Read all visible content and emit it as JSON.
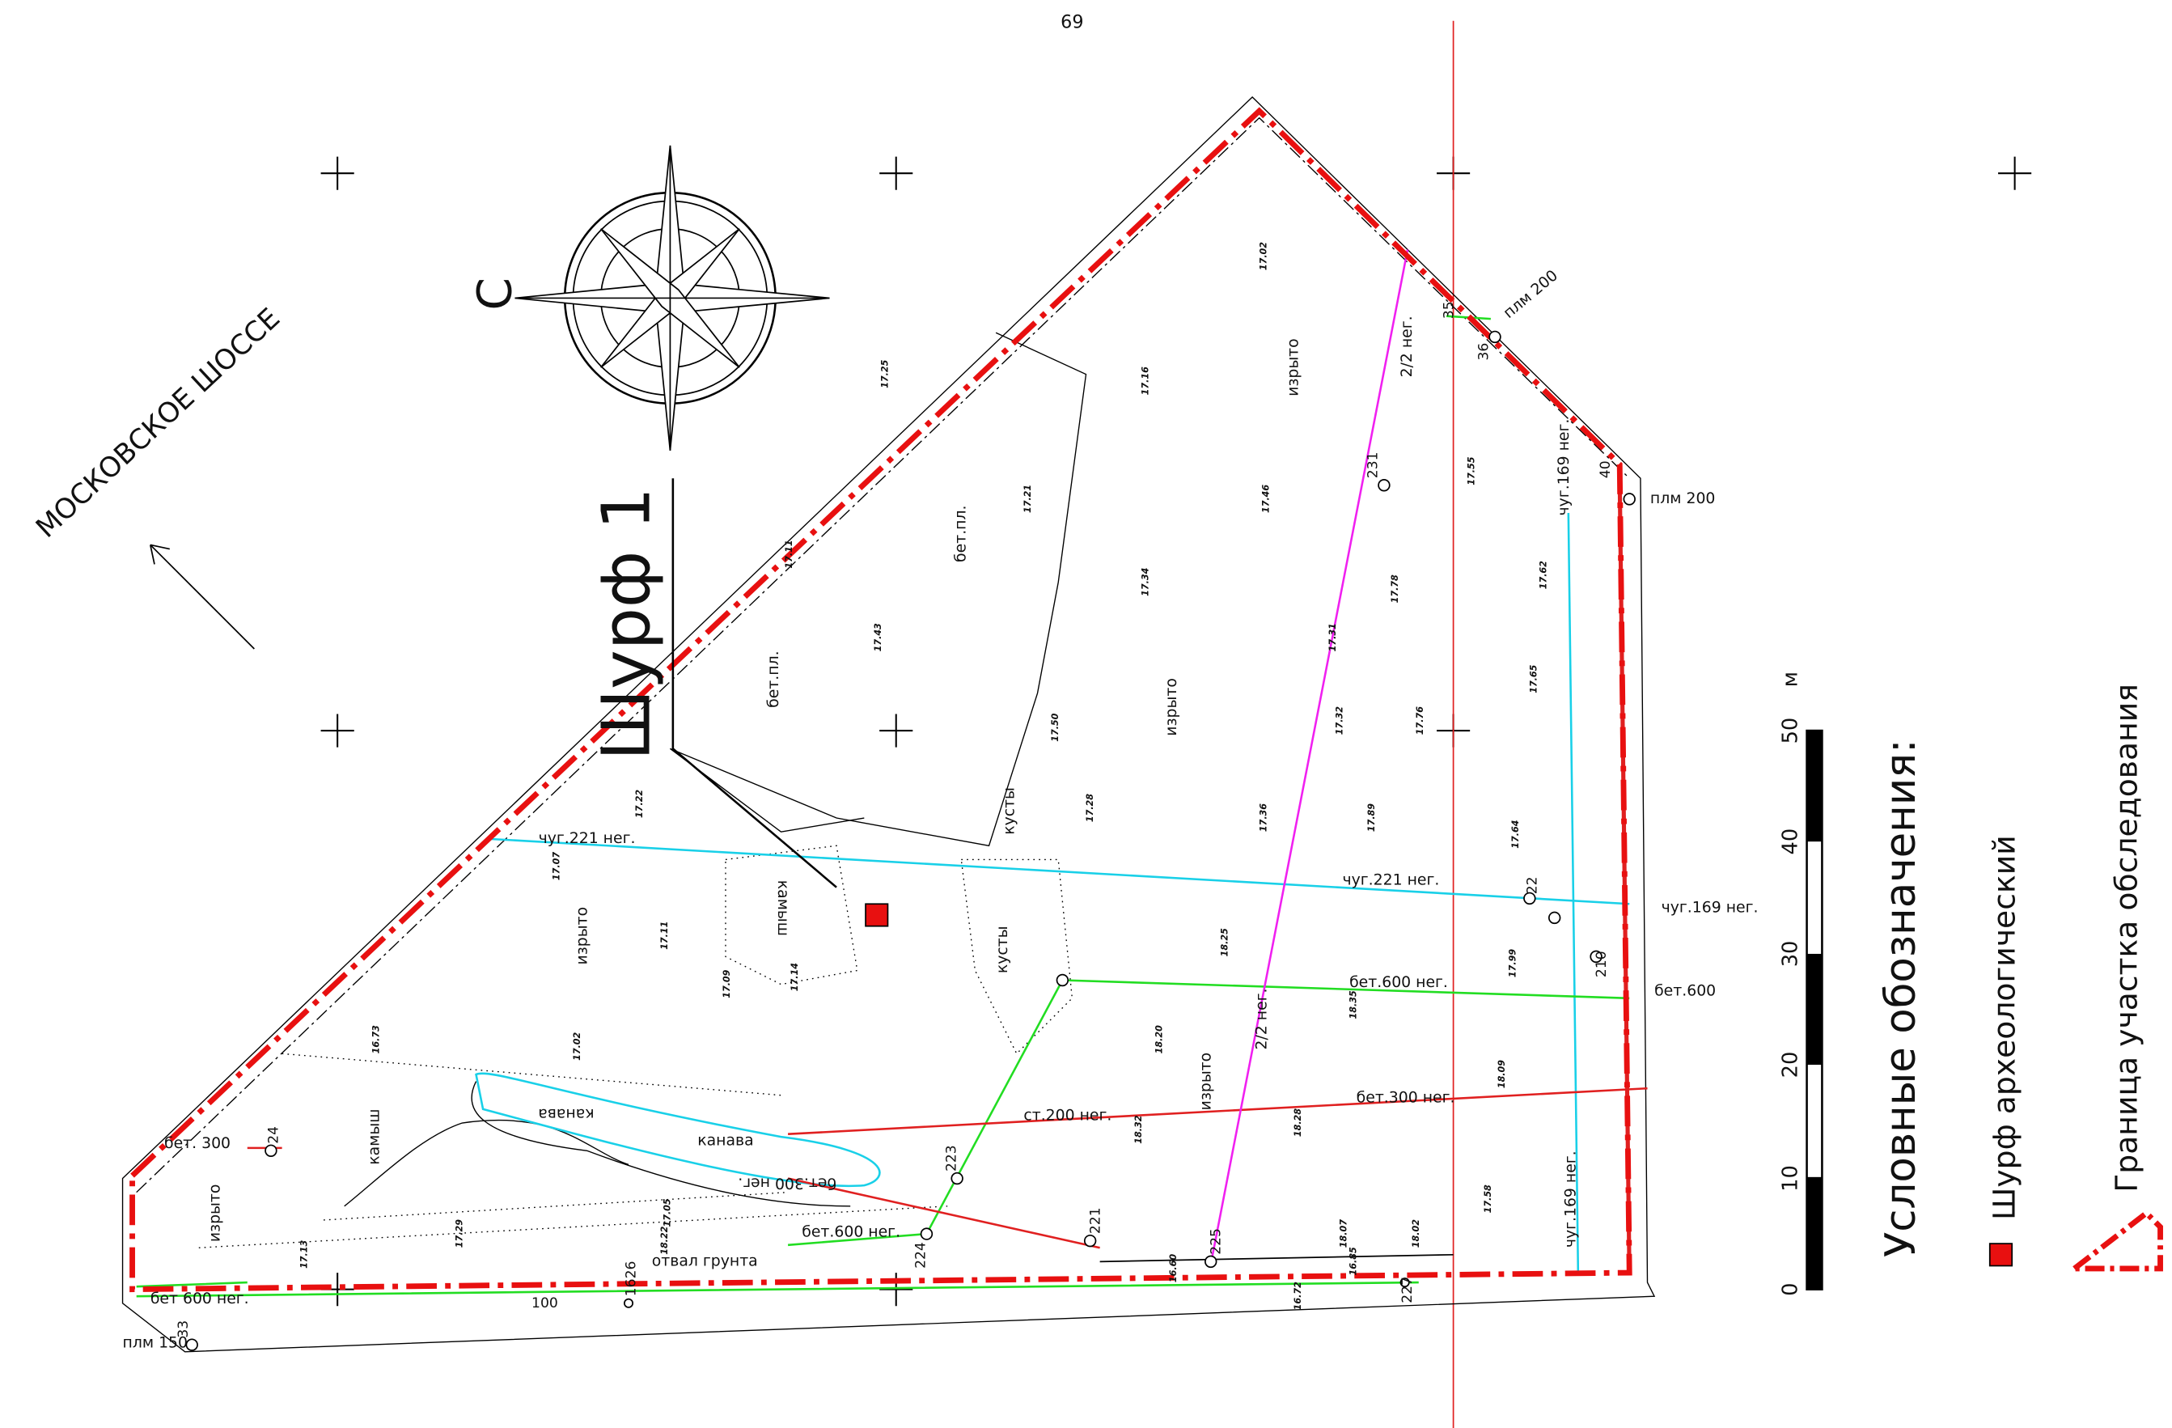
{
  "page_number": "69",
  "title": "Шурф 1",
  "north": "С",
  "road": "МОСКОВСКОЕ ШОССЕ",
  "legend": {
    "title": "Условные обозначения:",
    "items": [
      "Шурф археологический",
      "Граница участка обследования"
    ]
  },
  "scale_bar": {
    "labels": [
      0,
      10,
      20,
      30,
      40,
      50
    ],
    "unit": "м"
  },
  "map_labels": [
    "чуг.221 нег.",
    "чуг.221 нег.",
    "бет.600 нег.",
    "бет.300 нег.",
    "ст.200 нег.",
    "чуг.169 нег.",
    "чуг.169 нег.",
    "бет.600 нег.",
    "бет 600 нег.",
    "бет. 300",
    "изрыто",
    "изрыто",
    "изрыто",
    "изрыто",
    "изрыто",
    "бет.пл.",
    "бет.пл.",
    "камыш",
    "камыш",
    "кусты",
    "кусты",
    "канава",
    "канава",
    "отвал грунта",
    "2/2 нег.",
    "2/2 нег.",
    "плм 200",
    "плм 200",
    "плм 150",
    "бет.600",
    "бет.300 нег.",
    "чуг.169 нег."
  ],
  "points": [
    "231",
    "224",
    "223",
    "221",
    "225",
    "22",
    "210",
    "227",
    "1626",
    "100",
    "24",
    "35",
    "36",
    "40",
    "33"
  ],
  "elevations": [
    "17.02",
    "17.16",
    "17.46",
    "17.55",
    "17.25",
    "17.21",
    "17.11",
    "17.43",
    "17.34",
    "17.31",
    "17.78",
    "17.62",
    "17.65",
    "17.50",
    "17.32",
    "17.76",
    "17.28",
    "17.36",
    "17.89",
    "17.64",
    "17.07",
    "17.22",
    "17.11",
    "17.09",
    "17.14",
    "18.25",
    "18.20",
    "18.32",
    "18.28",
    "18.09",
    "17.99",
    "17.58",
    "18.35",
    "17.02",
    "17.05",
    "18.22",
    "16.73",
    "17.13",
    "17.29",
    "18.07",
    "18.02",
    "16.85",
    "16.60",
    "16.72"
  ]
}
